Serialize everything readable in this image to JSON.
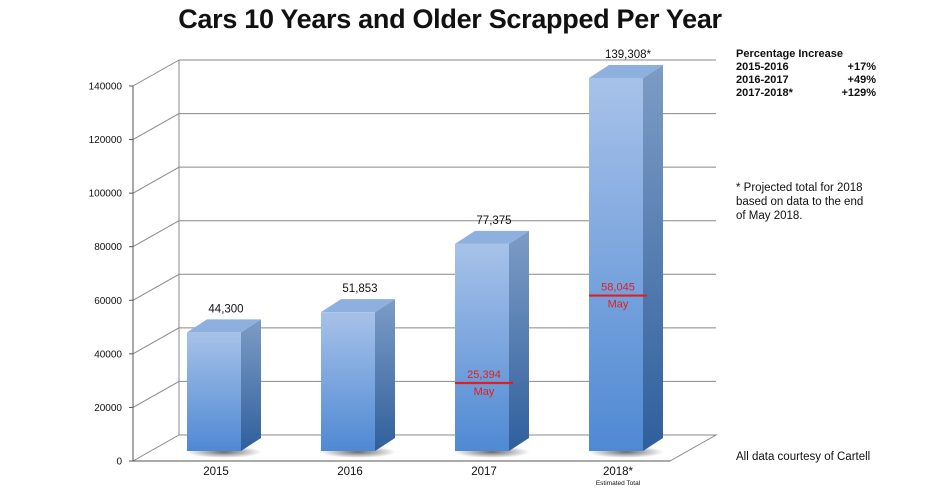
{
  "chart_data": {
    "type": "bar",
    "title": "Cars 10 Years and Older Scrapped Per Year",
    "categories": [
      "2015",
      "2016",
      "2017",
      "2018*"
    ],
    "category_subtitles": [
      "",
      "",
      "",
      "Estimated Total"
    ],
    "values": [
      44300,
      51853,
      77375,
      139308
    ],
    "value_labels": [
      "44,300",
      "51,853",
      "77,375",
      "139,308*"
    ],
    "may_markers": [
      {
        "category": "2017",
        "value": 25394,
        "label": "25,394",
        "sublabel": "May"
      },
      {
        "category": "2018*",
        "value": 58045,
        "label": "58,045",
        "sublabel": "May"
      }
    ],
    "ylim": [
      0,
      140000
    ],
    "yticks": [
      0,
      20000,
      40000,
      60000,
      80000,
      100000,
      120000,
      140000
    ],
    "xlabel": "",
    "ylabel": "",
    "grid": true,
    "style": "3d-bar",
    "bar_color": "#6a9bd8",
    "marker_color": "#e02020"
  },
  "percentage_increase": {
    "heading": "Percentage Increase",
    "rows": [
      {
        "period": "2015-2016",
        "value": "+17%"
      },
      {
        "period": "2016-2017",
        "value": "+49%"
      },
      {
        "period": "2017-2018*",
        "value": "+129%"
      }
    ]
  },
  "footnote": "* Projected total for 2018 based on data to the end of May 2018.",
  "credit": "All data courtesy of Cartell"
}
